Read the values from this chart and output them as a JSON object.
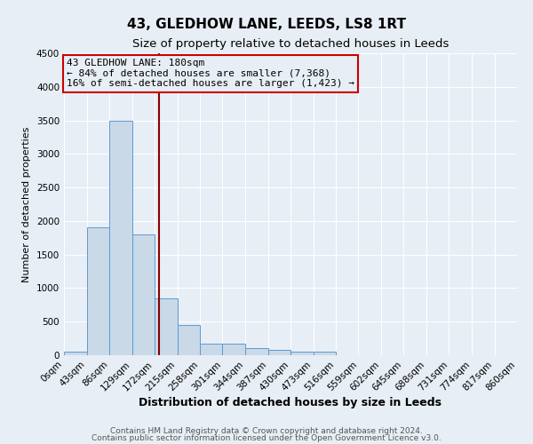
{
  "title": "43, GLEDHOW LANE, LEEDS, LS8 1RT",
  "subtitle": "Size of property relative to detached houses in Leeds",
  "xlabel": "Distribution of detached houses by size in Leeds",
  "ylabel": "Number of detached properties",
  "bin_edges": [
    0,
    43,
    86,
    129,
    172,
    215,
    258,
    301,
    344,
    387,
    430,
    473,
    516,
    559,
    602,
    645,
    688,
    731,
    774,
    817,
    860
  ],
  "bar_heights": [
    50,
    1900,
    3500,
    1800,
    850,
    450,
    175,
    175,
    100,
    75,
    50,
    50,
    0,
    0,
    0,
    0,
    0,
    0,
    0,
    0
  ],
  "bar_color": "#c9d9e8",
  "bar_edgecolor": "#5b9bd5",
  "ylim": [
    0,
    4500
  ],
  "vline_x": 180,
  "vline_color": "#8b0000",
  "annotation_text": "43 GLEDHOW LANE: 180sqm\n← 84% of detached houses are smaller (7,368)\n16% of semi-detached houses are larger (1,423) →",
  "annotation_box_color": "#cc0000",
  "annotation_fontsize": 8,
  "title_fontsize": 11,
  "subtitle_fontsize": 9.5,
  "xlabel_fontsize": 9,
  "ylabel_fontsize": 8,
  "footer_line1": "Contains HM Land Registry data © Crown copyright and database right 2024.",
  "footer_line2": "Contains public sector information licensed under the Open Government Licence v3.0.",
  "background_color": "#e8eef5",
  "grid_color": "#ffffff",
  "yticks": [
    0,
    500,
    1000,
    1500,
    2000,
    2500,
    3000,
    3500,
    4000,
    4500
  ],
  "tick_label_fontsize": 7.5
}
